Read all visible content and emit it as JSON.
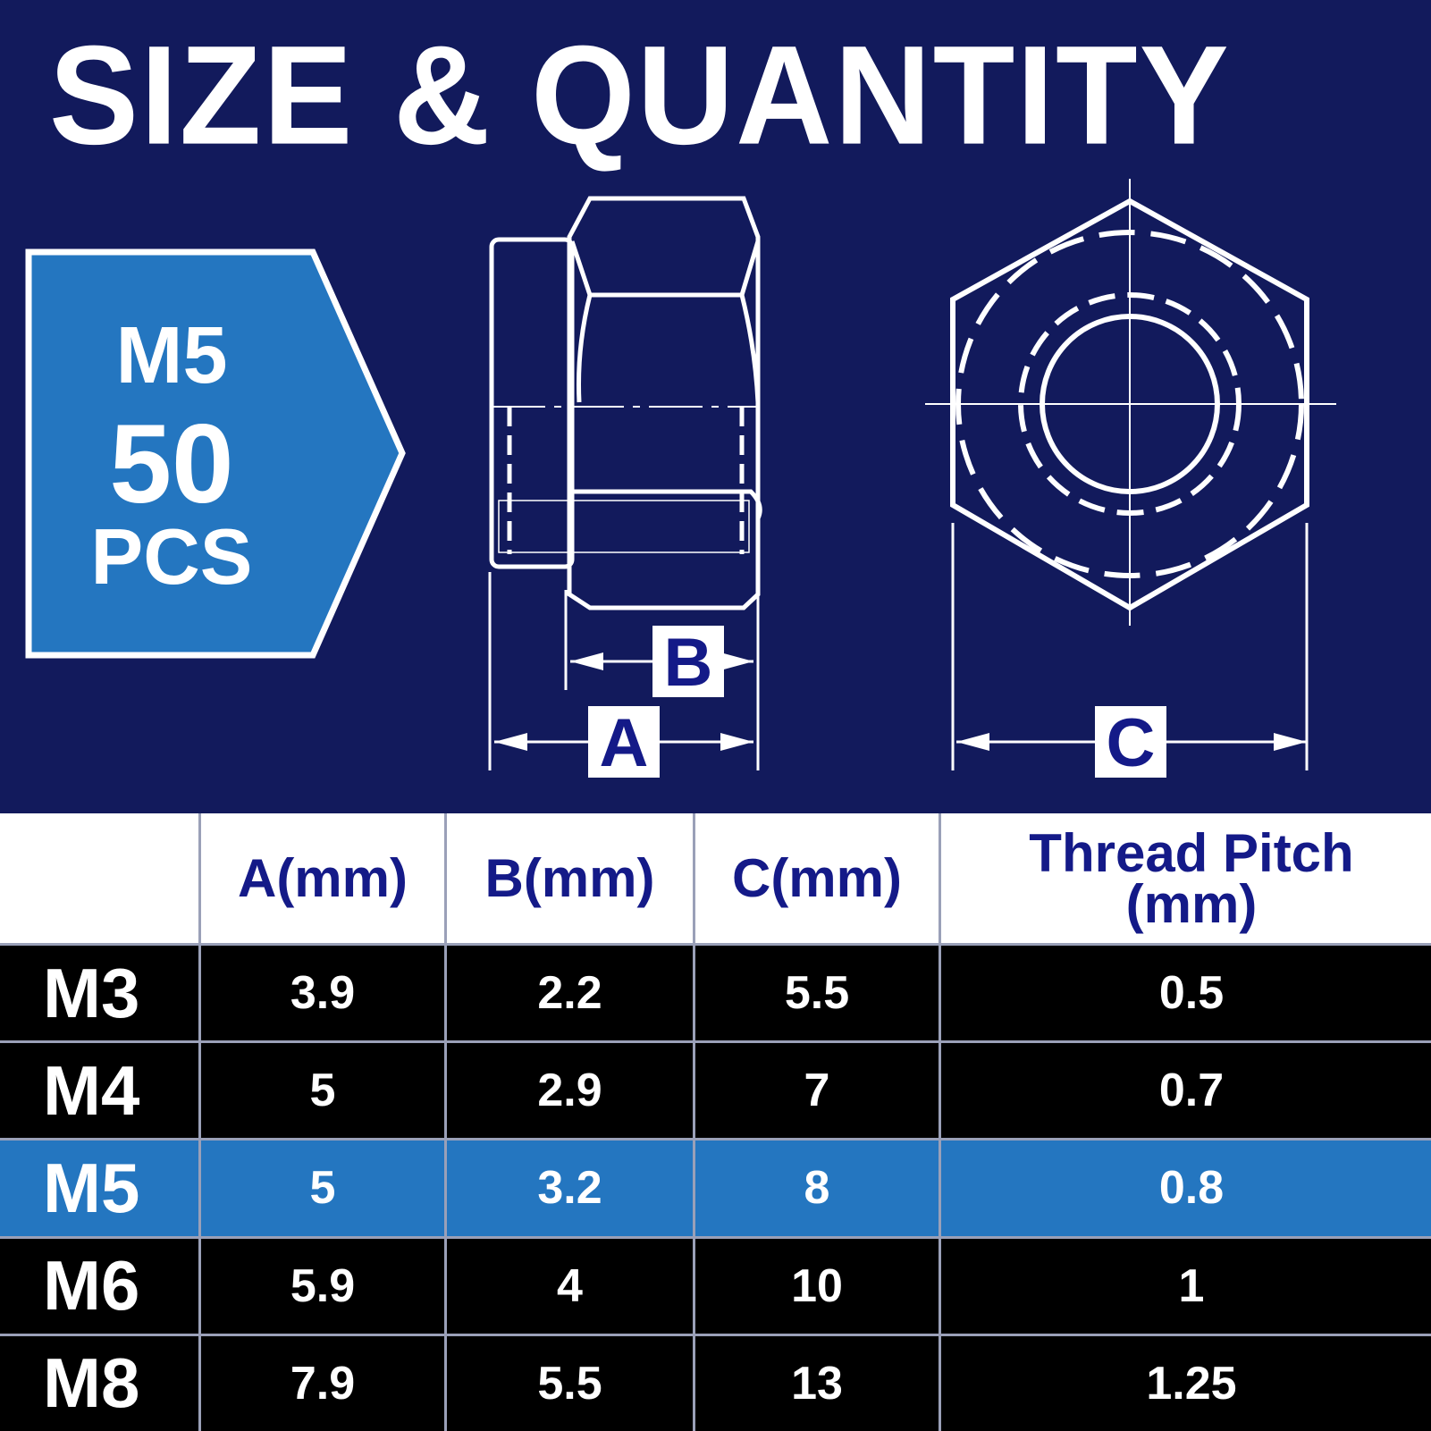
{
  "header": {
    "title": "SIZE & QUANTITY"
  },
  "badge": {
    "size": "M5",
    "quantity": "50",
    "unit": "PCS"
  },
  "diagram": {
    "dimensions": [
      "A",
      "B",
      "C"
    ]
  },
  "table": {
    "columns": [
      "A(mm)",
      "B(mm)",
      "C(mm)",
      "Thread Pitch\n(mm)"
    ],
    "rows": [
      {
        "label": "M3",
        "cells": [
          "3.9",
          "2.2",
          "5.5",
          "0.5"
        ]
      },
      {
        "label": "M4",
        "cells": [
          "5",
          "2.9",
          "7",
          "0.7"
        ]
      },
      {
        "label": "M5",
        "cells": [
          "5",
          "3.2",
          "8",
          "0.8"
        ],
        "highlighted": true
      },
      {
        "label": "M6",
        "cells": [
          "5.9",
          "4",
          "10",
          "1"
        ]
      },
      {
        "label": "M8",
        "cells": [
          "7.9",
          "5.5",
          "13",
          "1.25"
        ]
      }
    ]
  }
}
